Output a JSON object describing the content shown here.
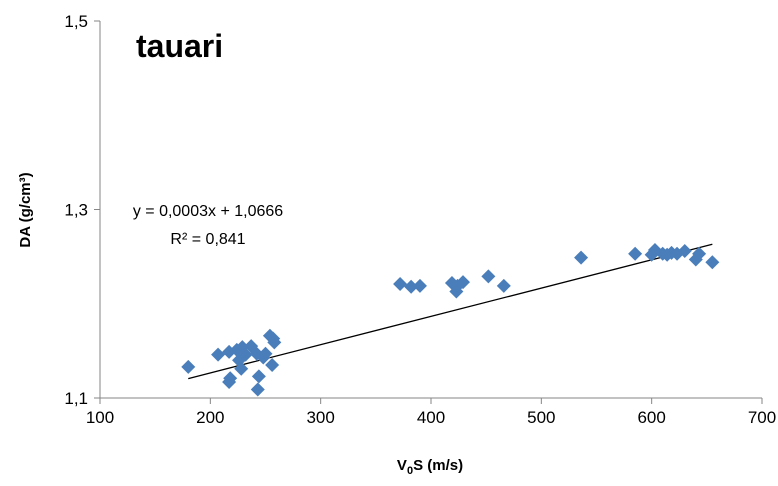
{
  "chart_data": {
    "type": "scatter",
    "title": "tauari",
    "xlabel_main": "V",
    "xlabel_sub": "0",
    "xlabel_rest": "S (m/s)",
    "ylabel": "DA (g/cm³)",
    "xlim": [
      100,
      700
    ],
    "ylim": [
      1.1,
      1.5
    ],
    "x_ticks": [
      100,
      200,
      300,
      400,
      500,
      600,
      700
    ],
    "y_ticks": [
      1.1,
      1.3,
      1.5
    ],
    "x_tick_labels": [
      "100",
      "200",
      "300",
      "400",
      "500",
      "600",
      "700"
    ],
    "y_tick_labels": [
      "1,1",
      "1,3",
      "1,5"
    ],
    "grid": false,
    "marker": "diamond",
    "marker_color": "#4A7EBB",
    "trendline_color": "#000000",
    "equation": "y = 0,0003x + 1,0666",
    "r_squared": "R² = 0,841",
    "trendline": {
      "slope": 0.0003,
      "intercept": 1.0666,
      "x_range": [
        180,
        655
      ]
    },
    "points": [
      [
        180,
        1.133
      ],
      [
        207,
        1.146
      ],
      [
        217,
        1.149
      ],
      [
        217,
        1.117
      ],
      [
        218,
        1.121
      ],
      [
        224,
        1.151
      ],
      [
        226,
        1.14
      ],
      [
        228,
        1.131
      ],
      [
        229,
        1.154
      ],
      [
        232,
        1.146
      ],
      [
        237,
        1.155
      ],
      [
        242,
        1.147
      ],
      [
        243,
        1.109
      ],
      [
        244,
        1.123
      ],
      [
        248,
        1.143
      ],
      [
        250,
        1.147
      ],
      [
        254,
        1.166
      ],
      [
        256,
        1.135
      ],
      [
        257,
        1.163
      ],
      [
        258,
        1.159
      ],
      [
        372,
        1.221
      ],
      [
        382,
        1.218
      ],
      [
        390,
        1.219
      ],
      [
        419,
        1.222
      ],
      [
        423,
        1.213
      ],
      [
        424,
        1.219
      ],
      [
        429,
        1.223
      ],
      [
        452,
        1.229
      ],
      [
        466,
        1.219
      ],
      [
        536,
        1.249
      ],
      [
        585,
        1.253
      ],
      [
        600,
        1.252
      ],
      [
        603,
        1.257
      ],
      [
        610,
        1.253
      ],
      [
        614,
        1.252
      ],
      [
        618,
        1.254
      ],
      [
        623,
        1.253
      ],
      [
        630,
        1.256
      ],
      [
        640,
        1.247
      ],
      [
        643,
        1.253
      ],
      [
        655,
        1.244
      ]
    ]
  }
}
